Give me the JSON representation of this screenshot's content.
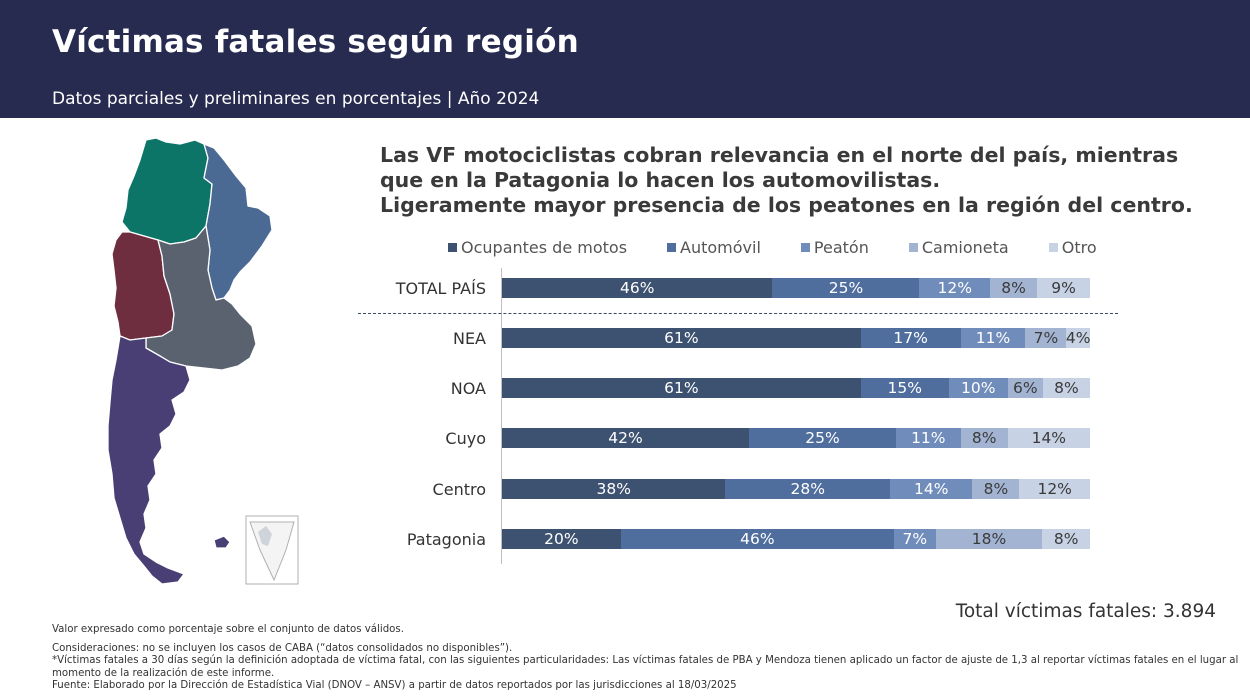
{
  "header": {
    "title": "Víctimas fatales según región",
    "subtitle": "Datos parciales y preliminares en porcentajes | Año 2024"
  },
  "headline": {
    "line1": "Las VF motociclistas cobran relevancia en el norte del país, mientras",
    "line2": "que en la Patagonia lo hacen los automovilistas.",
    "line3": "Ligeramente mayor presencia de los peatones en la región del centro."
  },
  "colors": {
    "header_bg": "#262b4f",
    "noa": "#0d7567",
    "nea": "#4a6a94",
    "cuyo": "#6e2e3f",
    "centro": "#5a6270",
    "patagonia": "#4a3f75"
  },
  "chart_data": {
    "type": "bar",
    "orientation": "horizontal",
    "stacked": true,
    "percent": true,
    "categories": [
      "TOTAL PAÍS",
      "NEA",
      "NOA",
      "Cuyo",
      "Centro",
      "Patagonia"
    ],
    "series": [
      {
        "name": "Ocupantes de motos",
        "color": "#3d5170",
        "values": [
          46,
          61,
          61,
          42,
          38,
          20
        ],
        "labels": [
          "46%",
          "61%",
          "61%",
          "42%",
          "38%",
          "20%"
        ]
      },
      {
        "name": "Automóvil",
        "color": "#4f6e9e",
        "values": [
          25,
          17,
          15,
          25,
          28,
          46
        ],
        "labels": [
          "25%",
          "17%",
          "15%",
          "25%",
          "28%",
          "46%"
        ]
      },
      {
        "name": "Peatón",
        "color": "#6f8cbb",
        "values": [
          12,
          11,
          10,
          11,
          14,
          7
        ],
        "labels": [
          "12%",
          "11%",
          "10%",
          "11%",
          "14%",
          "7%"
        ]
      },
      {
        "name": "Camioneta",
        "color": "#a3b4d3",
        "values": [
          8,
          7,
          6,
          8,
          8,
          18
        ],
        "labels": [
          "8%",
          "7%",
          "6%",
          "8%",
          "8%",
          "18%"
        ]
      },
      {
        "name": "Otro",
        "color": "#c7d2e5",
        "values": [
          9,
          4,
          8,
          14,
          12,
          8
        ],
        "labels": [
          "9%",
          "4%",
          "8%",
          "14%",
          "12%",
          "8%"
        ]
      }
    ],
    "xlim": [
      0,
      100
    ],
    "legend_position": "top"
  },
  "total": "Total víctimas fatales: 3.894",
  "notes": {
    "valor": "Valor expresado como porcentaje sobre el conjunto de datos válidos.",
    "consideraciones": "Consideraciones: no se incluyen los casos de CABA (“datos consolidados no disponibles”).",
    "vf_definicion": "*Víctimas fatales a 30 días según la definición adoptada de víctima fatal, con las siguientes particularidades: Las víctimas fatales de PBA y Mendoza tienen aplicado un factor de ajuste de 1,3 al reportar víctimas fatales en el lugar al momento de la realización de este informe.",
    "fuente": "Fuente: Elaborado por la Dirección de Estadística Vial (DNOV – ANSV) a partir de datos reportados por las jurisdicciones al 18/03/2025"
  }
}
